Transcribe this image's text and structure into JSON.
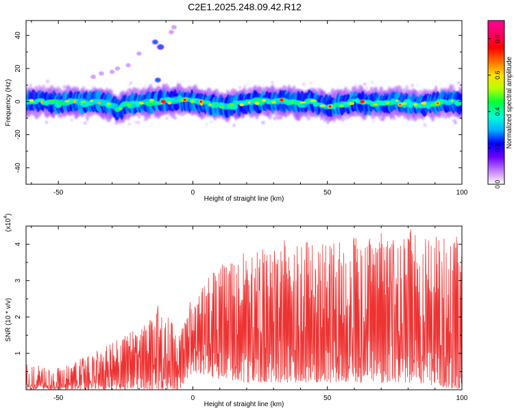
{
  "figure": {
    "title": "C2E1.2025.248.09.42.R12"
  },
  "chart_data": [
    {
      "type": "heatmap",
      "title": "C2E1.2025.248.09.42.R12",
      "xlabel": "Height of straight line (km)",
      "ylabel": "Frequency (Hz)",
      "xlim": [
        -62,
        100
      ],
      "ylim": [
        -50,
        49
      ],
      "xticks": [
        -50,
        0,
        50,
        100
      ],
      "yticks": [
        -40,
        -20,
        0,
        20,
        40
      ],
      "colorbar": {
        "label": "Normalized spectral amplitude",
        "range": [
          0,
          0.9
        ],
        "ticks": [
          0.0,
          0.2,
          0.4,
          0.6,
          0.8
        ],
        "colormap": [
          "#ffffff",
          "#c27cff",
          "#6a00ff",
          "#0000ff",
          "#00b4ff",
          "#00ffd2",
          "#00ff3c",
          "#b4ff00",
          "#ffe100",
          "#ff6e00",
          "#ff0000",
          "#ff0064",
          "#ff0096"
        ]
      },
      "band": {
        "center_hz": [
          [
            -62,
            0
          ],
          [
            -55,
            0
          ],
          [
            -50,
            -1
          ],
          [
            -45,
            0
          ],
          [
            -40,
            -1
          ],
          [
            -35,
            0
          ],
          [
            -30,
            -2
          ],
          [
            -28,
            -5
          ],
          [
            -25,
            -2
          ],
          [
            -20,
            -1
          ],
          [
            -15,
            0
          ],
          [
            -10,
            0
          ],
          [
            -5,
            1
          ],
          [
            0,
            0
          ],
          [
            5,
            -1
          ],
          [
            10,
            -3
          ],
          [
            15,
            -2
          ],
          [
            20,
            -1
          ],
          [
            25,
            0
          ],
          [
            30,
            0
          ],
          [
            35,
            0
          ],
          [
            40,
            -1
          ],
          [
            45,
            0
          ],
          [
            50,
            -3
          ],
          [
            55,
            -2
          ],
          [
            60,
            0
          ],
          [
            65,
            -1
          ],
          [
            70,
            -1
          ],
          [
            75,
            0
          ],
          [
            80,
            -1
          ],
          [
            85,
            -2
          ],
          [
            90,
            -1
          ],
          [
            95,
            0
          ],
          [
            100,
            -1
          ]
        ],
        "half_width_hz": 5
      },
      "features": [
        {
          "x": -12,
          "y": 33,
          "amplitude": 0.25
        },
        {
          "x": -14,
          "y": 36,
          "amplitude": 0.2
        },
        {
          "x": -13,
          "y": 13,
          "amplitude": 0.2
        },
        {
          "x": -7,
          "y": 45,
          "amplitude": 0.1
        },
        {
          "x": -8,
          "y": 42,
          "amplitude": 0.1
        },
        {
          "x": -20,
          "y": 29,
          "amplitude": 0.08
        },
        {
          "x": -24,
          "y": 22,
          "amplitude": 0.08
        },
        {
          "x": -28,
          "y": 20,
          "amplitude": 0.08
        },
        {
          "x": -34,
          "y": 17,
          "amplitude": 0.1
        },
        {
          "x": -37,
          "y": 15,
          "amplitude": 0.1
        },
        {
          "x": -30,
          "y": 18,
          "amplitude": 0.08
        }
      ],
      "peaks": [
        {
          "x": -11,
          "y": 0,
          "amplitude": 0.85
        },
        {
          "x": -3,
          "y": 1,
          "amplitude": 0.75
        },
        {
          "x": 3,
          "y": 0,
          "amplitude": 0.75
        },
        {
          "x": 33,
          "y": 1,
          "amplitude": 0.8
        },
        {
          "x": 51,
          "y": -3,
          "amplitude": 0.75
        },
        {
          "x": 63,
          "y": 0,
          "amplitude": 0.85
        },
        {
          "x": 77,
          "y": -2,
          "amplitude": 0.7
        },
        {
          "x": 91,
          "y": -1,
          "amplitude": 0.7
        }
      ]
    },
    {
      "type": "line",
      "xlabel": "Height of straight line (km)",
      "ylabel": "SNR (10 * v/v)",
      "yscale_label": "(x10",
      "yscale_exp": "4",
      "xlim": [
        -62,
        100
      ],
      "ylim": [
        0,
        4.5
      ],
      "xticks": [
        -50,
        0,
        50,
        100
      ],
      "yticks": [
        1,
        2,
        3,
        4
      ],
      "color": "#ee3333",
      "series": [
        {
          "envelope": {
            "x": [
              -62,
              -50,
              -40,
              -30,
              -20,
              -10,
              -5,
              0,
              5,
              10,
              20,
              30,
              40,
              50,
              60,
              70,
              80,
              90,
              100
            ],
            "low": [
              0.0,
              0.0,
              0.0,
              0.0,
              0.0,
              0.0,
              0.0,
              0.5,
              0.4,
              0.3,
              0.2,
              0.2,
              0.2,
              0.2,
              0.2,
              0.2,
              0.2,
              0.1,
              0.0
            ],
            "high": [
              0.7,
              0.6,
              0.9,
              1.3,
              1.7,
              2.3,
              1.5,
              2.4,
              3.0,
              3.4,
              3.8,
              3.9,
              4.1,
              4.0,
              4.2,
              4.1,
              4.4,
              4.3,
              4.0
            ]
          },
          "peaks": [
            {
              "x": 81,
              "y": 4.4
            },
            {
              "x": 70,
              "y": 4.3
            },
            {
              "x": 34,
              "y": 4.1
            },
            {
              "x": 98,
              "y": 4.2
            },
            {
              "x": 64,
              "y": 3.9
            },
            {
              "x": 52,
              "y": 3.7
            },
            {
              "x": -13,
              "y": 2.3
            },
            {
              "x": -1,
              "y": 2.4
            }
          ]
        }
      ]
    }
  ]
}
